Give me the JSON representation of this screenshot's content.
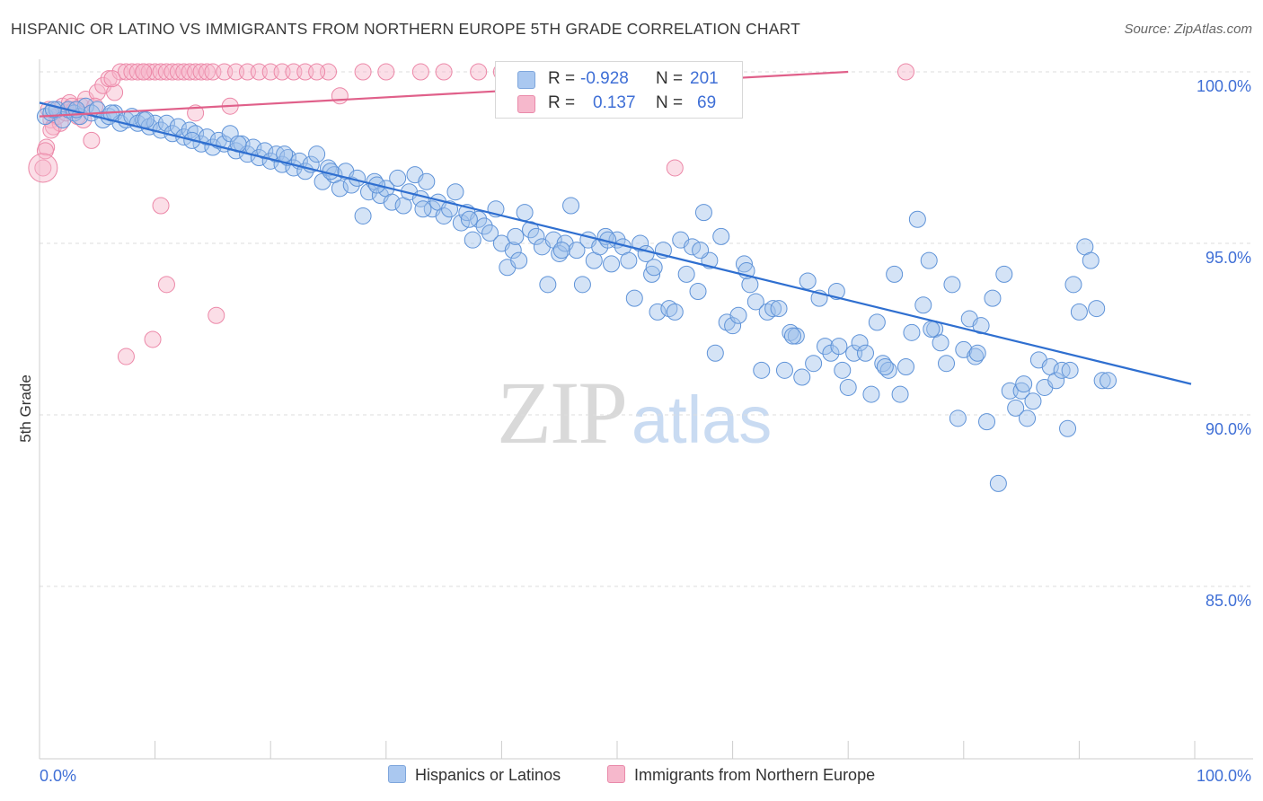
{
  "header": {
    "title": "HISPANIC OR LATINO VS IMMIGRANTS FROM NORTHERN EUROPE 5TH GRADE CORRELATION CHART",
    "source": "Source: ZipAtlas.com"
  },
  "watermark": {
    "zip": "ZIP",
    "atlas": "atlas"
  },
  "legend": {
    "rows": [
      {
        "r_label": "R =",
        "r_value": "-0.928",
        "n_label": "N =",
        "n_value": "201",
        "color": "#aac8f0"
      },
      {
        "r_label": "R =",
        "r_value": "0.137",
        "n_label": "N =",
        "n_value": "69",
        "color": "#f6b8cc"
      }
    ]
  },
  "colors": {
    "blue_fill": "#9fc1ec",
    "blue_stroke": "#5f93d8",
    "blue_line": "#2f6fd0",
    "pink_fill": "#f6b6ca",
    "pink_stroke": "#ec88a8",
    "pink_line": "#e0608a",
    "tick_label": "#3f6fd6",
    "grid": "#dddddd"
  },
  "chart_data": {
    "type": "scatter",
    "title": "HISPANIC OR LATINO VS IMMIGRANTS FROM NORTHERN EUROPE 5TH GRADE CORRELATION CHART",
    "xlabel": "",
    "ylabel": "5th Grade",
    "xlim": [
      0,
      100
    ],
    "ylim": [
      80,
      100.5
    ],
    "x_tick_labels": [
      "0.0%",
      "100.0%"
    ],
    "y_ticks": [
      {
        "value": 85,
        "label": "85.0%"
      },
      {
        "value": 90,
        "label": "90.0%"
      },
      {
        "value": 95,
        "label": "95.0%"
      },
      {
        "value": 100,
        "label": "100.0%"
      }
    ],
    "grid": true,
    "legend_position": "top-center",
    "series": [
      {
        "name": "Hispanics or Latinos",
        "color": "#9fc1ec",
        "trend": {
          "x": [
            0,
            100
          ],
          "y": [
            99.1,
            90.9
          ]
        },
        "points": [
          [
            0.5,
            98.7
          ],
          [
            1.0,
            98.8
          ],
          [
            1.5,
            98.9
          ],
          [
            2.0,
            98.6
          ],
          [
            2.5,
            98.9
          ],
          [
            3.0,
            98.8
          ],
          [
            3.5,
            98.7
          ],
          [
            4.0,
            99.0
          ],
          [
            4.5,
            98.8
          ],
          [
            5.0,
            98.9
          ],
          [
            5.5,
            98.6
          ],
          [
            6.0,
            98.7
          ],
          [
            6.5,
            98.8
          ],
          [
            7.0,
            98.5
          ],
          [
            7.5,
            98.6
          ],
          [
            8.0,
            98.7
          ],
          [
            8.5,
            98.5
          ],
          [
            9.0,
            98.6
          ],
          [
            9.5,
            98.4
          ],
          [
            10.0,
            98.5
          ],
          [
            10.5,
            98.3
          ],
          [
            11.0,
            98.5
          ],
          [
            11.5,
            98.2
          ],
          [
            12.0,
            98.4
          ],
          [
            12.5,
            98.1
          ],
          [
            13.0,
            98.3
          ],
          [
            13.5,
            98.2
          ],
          [
            14.0,
            97.9
          ],
          [
            14.5,
            98.1
          ],
          [
            15.0,
            97.8
          ],
          [
            15.5,
            98.0
          ],
          [
            16.0,
            97.9
          ],
          [
            16.5,
            98.2
          ],
          [
            17.0,
            97.7
          ],
          [
            17.5,
            97.9
          ],
          [
            18.0,
            97.6
          ],
          [
            18.5,
            97.8
          ],
          [
            19.0,
            97.5
          ],
          [
            19.5,
            97.7
          ],
          [
            20.0,
            97.4
          ],
          [
            20.5,
            97.6
          ],
          [
            21.0,
            97.3
          ],
          [
            21.5,
            97.5
          ],
          [
            22.0,
            97.2
          ],
          [
            22.5,
            97.4
          ],
          [
            23.0,
            97.1
          ],
          [
            23.5,
            97.3
          ],
          [
            24.0,
            97.6
          ],
          [
            24.5,
            96.8
          ],
          [
            25.0,
            97.2
          ],
          [
            25.5,
            97.0
          ],
          [
            26.0,
            96.6
          ],
          [
            26.5,
            97.1
          ],
          [
            27.0,
            96.7
          ],
          [
            27.5,
            96.9
          ],
          [
            28.0,
            95.8
          ],
          [
            28.5,
            96.5
          ],
          [
            29.0,
            96.8
          ],
          [
            29.5,
            96.4
          ],
          [
            30.0,
            96.6
          ],
          [
            30.5,
            96.2
          ],
          [
            31.0,
            96.9
          ],
          [
            31.5,
            96.1
          ],
          [
            32.0,
            96.5
          ],
          [
            32.5,
            97.0
          ],
          [
            33.0,
            96.3
          ],
          [
            33.5,
            96.8
          ],
          [
            34.0,
            96.0
          ],
          [
            34.5,
            96.2
          ],
          [
            35.0,
            95.8
          ],
          [
            35.5,
            96.0
          ],
          [
            36.0,
            96.5
          ],
          [
            36.5,
            95.6
          ],
          [
            37.0,
            95.9
          ],
          [
            37.5,
            95.1
          ],
          [
            38.0,
            95.7
          ],
          [
            38.5,
            95.5
          ],
          [
            39.0,
            95.3
          ],
          [
            39.5,
            96.0
          ],
          [
            40.0,
            95.0
          ],
          [
            40.5,
            94.3
          ],
          [
            41.0,
            94.8
          ],
          [
            41.5,
            94.5
          ],
          [
            42.0,
            95.9
          ],
          [
            42.5,
            95.4
          ],
          [
            43.0,
            95.2
          ],
          [
            43.5,
            94.9
          ],
          [
            44.0,
            93.8
          ],
          [
            44.5,
            95.1
          ],
          [
            45.0,
            94.7
          ],
          [
            45.5,
            95.0
          ],
          [
            46.0,
            96.1
          ],
          [
            46.5,
            94.8
          ],
          [
            47.0,
            93.8
          ],
          [
            47.5,
            95.1
          ],
          [
            48.0,
            94.5
          ],
          [
            48.5,
            94.9
          ],
          [
            49.0,
            95.2
          ],
          [
            49.5,
            94.4
          ],
          [
            50.0,
            95.1
          ],
          [
            50.5,
            94.9
          ],
          [
            51.0,
            94.5
          ],
          [
            51.5,
            93.4
          ],
          [
            52.0,
            95.0
          ],
          [
            52.5,
            94.7
          ],
          [
            53.0,
            94.1
          ],
          [
            53.5,
            93.0
          ],
          [
            54.0,
            94.8
          ],
          [
            54.5,
            93.1
          ],
          [
            55.0,
            93.0
          ],
          [
            55.5,
            95.1
          ],
          [
            56.0,
            94.1
          ],
          [
            56.5,
            94.9
          ],
          [
            57.0,
            93.6
          ],
          [
            57.5,
            95.9
          ],
          [
            58.0,
            94.5
          ],
          [
            58.5,
            91.8
          ],
          [
            59.0,
            95.2
          ],
          [
            59.5,
            92.7
          ],
          [
            60.0,
            92.6
          ],
          [
            60.5,
            92.9
          ],
          [
            61.0,
            94.4
          ],
          [
            61.5,
            93.8
          ],
          [
            62.0,
            93.3
          ],
          [
            62.5,
            91.3
          ],
          [
            63.0,
            93.0
          ],
          [
            63.5,
            93.1
          ],
          [
            64.0,
            93.1
          ],
          [
            64.5,
            91.3
          ],
          [
            65.0,
            92.4
          ],
          [
            65.5,
            92.3
          ],
          [
            66.0,
            91.1
          ],
          [
            66.5,
            93.9
          ],
          [
            67.0,
            91.5
          ],
          [
            67.5,
            93.4
          ],
          [
            68.0,
            92.0
          ],
          [
            68.5,
            91.8
          ],
          [
            69.0,
            93.6
          ],
          [
            69.5,
            91.3
          ],
          [
            70.0,
            90.8
          ],
          [
            70.5,
            91.8
          ],
          [
            71.0,
            92.1
          ],
          [
            71.5,
            91.8
          ],
          [
            72.0,
            90.6
          ],
          [
            72.5,
            92.7
          ],
          [
            73.0,
            91.5
          ],
          [
            73.5,
            91.3
          ],
          [
            74.0,
            94.1
          ],
          [
            74.5,
            90.6
          ],
          [
            75.0,
            91.4
          ],
          [
            75.5,
            92.4
          ],
          [
            76.0,
            95.7
          ],
          [
            76.5,
            93.2
          ],
          [
            77.0,
            94.5
          ],
          [
            77.5,
            92.5
          ],
          [
            78.0,
            92.1
          ],
          [
            78.5,
            91.5
          ],
          [
            79.0,
            93.8
          ],
          [
            79.5,
            89.9
          ],
          [
            80.0,
            91.9
          ],
          [
            80.5,
            92.8
          ],
          [
            81.0,
            91.7
          ],
          [
            81.5,
            92.6
          ],
          [
            82.0,
            89.8
          ],
          [
            82.5,
            93.4
          ],
          [
            83.0,
            88.0
          ],
          [
            83.5,
            94.1
          ],
          [
            84.0,
            90.7
          ],
          [
            84.5,
            90.2
          ],
          [
            85.0,
            90.7
          ],
          [
            85.5,
            89.9
          ],
          [
            86.0,
            90.4
          ],
          [
            86.5,
            91.6
          ],
          [
            87.0,
            90.8
          ],
          [
            87.5,
            91.4
          ],
          [
            88.0,
            91.0
          ],
          [
            88.5,
            91.3
          ],
          [
            89.0,
            89.6
          ],
          [
            89.5,
            93.8
          ],
          [
            90.0,
            93.0
          ],
          [
            90.5,
            94.9
          ],
          [
            91.0,
            94.5
          ],
          [
            91.5,
            93.1
          ],
          [
            92.0,
            91.0
          ],
          [
            1.2,
            98.9
          ],
          [
            3.2,
            98.9
          ],
          [
            6.2,
            98.8
          ],
          [
            9.2,
            98.6
          ],
          [
            13.2,
            98.0
          ],
          [
            17.2,
            97.9
          ],
          [
            21.2,
            97.6
          ],
          [
            25.2,
            97.1
          ],
          [
            29.2,
            96.7
          ],
          [
            33.2,
            96.0
          ],
          [
            37.2,
            95.7
          ],
          [
            41.2,
            95.2
          ],
          [
            45.2,
            94.8
          ],
          [
            49.2,
            95.1
          ],
          [
            53.2,
            94.3
          ],
          [
            57.2,
            94.8
          ],
          [
            61.2,
            94.2
          ],
          [
            65.2,
            92.3
          ],
          [
            69.2,
            92.0
          ],
          [
            73.2,
            91.4
          ],
          [
            77.2,
            92.5
          ],
          [
            81.2,
            91.8
          ],
          [
            85.2,
            90.9
          ],
          [
            89.2,
            91.3
          ],
          [
            92.5,
            91.0
          ]
        ]
      },
      {
        "name": "Immigrants from Northern Europe",
        "color": "#f6b6ca",
        "trend": {
          "x": [
            0,
            70
          ],
          "y": [
            98.7,
            100.0
          ]
        },
        "points": [
          [
            0.3,
            97.2
          ],
          [
            0.6,
            97.8
          ],
          [
            0.8,
            98.9
          ],
          [
            1.0,
            98.6
          ],
          [
            1.2,
            98.4
          ],
          [
            1.5,
            98.7
          ],
          [
            1.8,
            98.5
          ],
          [
            2.0,
            99.0
          ],
          [
            2.3,
            98.8
          ],
          [
            2.6,
            99.1
          ],
          [
            3.0,
            98.9
          ],
          [
            3.3,
            98.7
          ],
          [
            3.6,
            99.0
          ],
          [
            4.0,
            99.2
          ],
          [
            4.5,
            98.0
          ],
          [
            5.0,
            99.4
          ],
          [
            5.5,
            99.6
          ],
          [
            6.0,
            99.8
          ],
          [
            6.5,
            99.4
          ],
          [
            7.0,
            100.0
          ],
          [
            7.5,
            100.0
          ],
          [
            8.0,
            100.0
          ],
          [
            8.5,
            100.0
          ],
          [
            9.0,
            100.0
          ],
          [
            9.5,
            100.0
          ],
          [
            10.0,
            100.0
          ],
          [
            10.5,
            100.0
          ],
          [
            11.0,
            100.0
          ],
          [
            11.5,
            100.0
          ],
          [
            12.0,
            100.0
          ],
          [
            12.5,
            100.0
          ],
          [
            13.0,
            100.0
          ],
          [
            13.5,
            100.0
          ],
          [
            14.0,
            100.0
          ],
          [
            14.5,
            100.0
          ],
          [
            15.0,
            100.0
          ],
          [
            16.0,
            100.0
          ],
          [
            17.0,
            100.0
          ],
          [
            18.0,
            100.0
          ],
          [
            19.0,
            100.0
          ],
          [
            20.0,
            100.0
          ],
          [
            21.0,
            100.0
          ],
          [
            22.0,
            100.0
          ],
          [
            23.0,
            100.0
          ],
          [
            25.0,
            100.0
          ],
          [
            26.0,
            99.3
          ],
          [
            28.0,
            100.0
          ],
          [
            30.0,
            100.0
          ],
          [
            33.0,
            100.0
          ],
          [
            35.0,
            100.0
          ],
          [
            38.0,
            100.0
          ],
          [
            40.0,
            100.0
          ],
          [
            55.0,
            97.2
          ],
          [
            75.0,
            100.0
          ],
          [
            7.5,
            91.7
          ],
          [
            9.8,
            92.2
          ],
          [
            10.5,
            96.1
          ],
          [
            11.0,
            93.8
          ],
          [
            15.3,
            92.9
          ],
          [
            13.5,
            98.8
          ],
          [
            0.5,
            97.7
          ],
          [
            1.0,
            98.3
          ],
          [
            2.8,
            99.0
          ],
          [
            3.8,
            98.6
          ],
          [
            4.8,
            99.0
          ],
          [
            6.3,
            99.8
          ],
          [
            9.0,
            100.0
          ],
          [
            16.5,
            99.0
          ],
          [
            24.0,
            100.0
          ]
        ]
      }
    ]
  },
  "bottom_legend": [
    {
      "label": "Hispanics or Latinos",
      "color": "#aac8f0"
    },
    {
      "label": "Immigrants from Northern Europe",
      "color": "#f6b8cc"
    }
  ]
}
